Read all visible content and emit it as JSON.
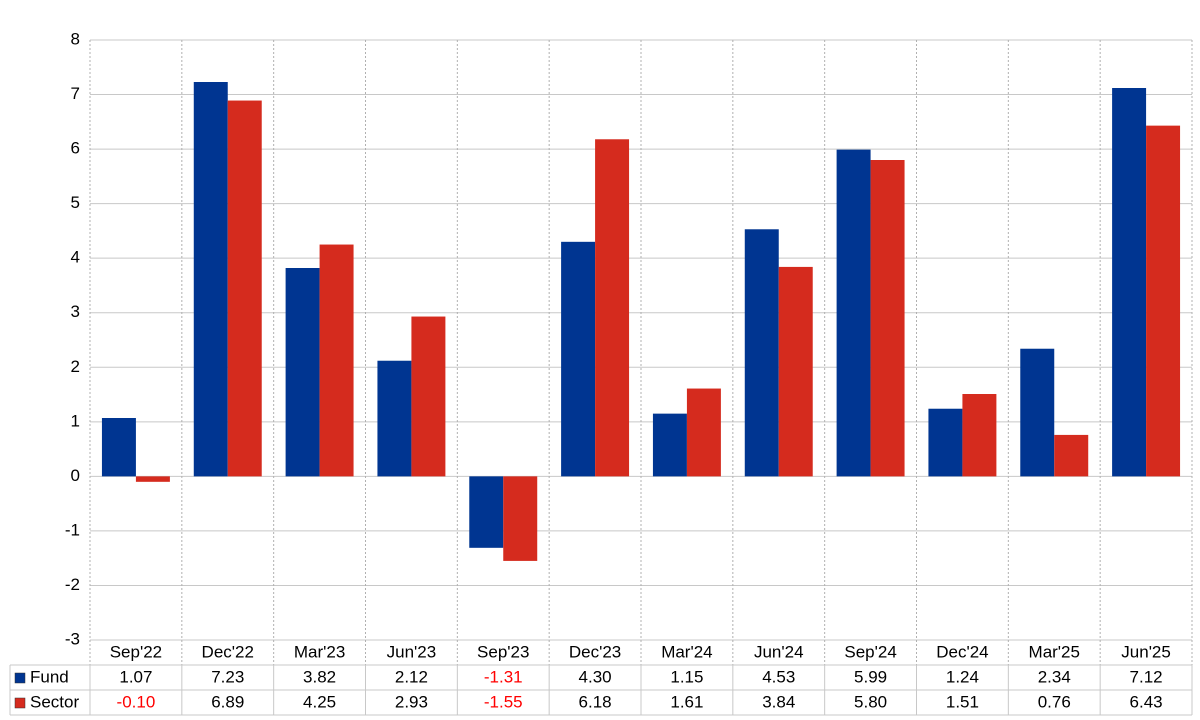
{
  "chart_data": {
    "type": "bar",
    "categories": [
      "Sep'22",
      "Dec'22",
      "Mar'23",
      "Jun'23",
      "Sep'23",
      "Dec'23",
      "Mar'24",
      "Jun'24",
      "Sep'24",
      "Dec'24",
      "Mar'25",
      "Jun'25"
    ],
    "series": [
      {
        "name": "Fund",
        "color": "#003591",
        "values": [
          1.07,
          7.23,
          3.82,
          2.12,
          -1.31,
          4.3,
          1.15,
          4.53,
          5.99,
          1.24,
          2.34,
          7.12
        ],
        "value_labels": [
          "1.07",
          "7.23",
          "3.82",
          "2.12",
          "-1.31",
          "4.30",
          "1.15",
          "4.53",
          "5.99",
          "1.24",
          "2.34",
          "7.12"
        ]
      },
      {
        "name": "Sector",
        "color": "#d52b1e",
        "values": [
          -0.1,
          6.89,
          4.25,
          2.93,
          -1.55,
          6.18,
          1.61,
          3.84,
          5.8,
          1.51,
          0.76,
          6.43
        ],
        "value_labels": [
          "-0.10",
          "6.89",
          "4.25",
          "2.93",
          "-1.55",
          "6.18",
          "1.61",
          "3.84",
          "5.80",
          "1.51",
          "0.76",
          "6.43"
        ]
      }
    ],
    "ylim": [
      -3,
      8
    ],
    "yticks": [
      -3,
      -2,
      -1,
      0,
      1,
      2,
      3,
      4,
      5,
      6,
      7,
      8
    ],
    "grid": true,
    "negative_label_color": "#ff0000"
  }
}
